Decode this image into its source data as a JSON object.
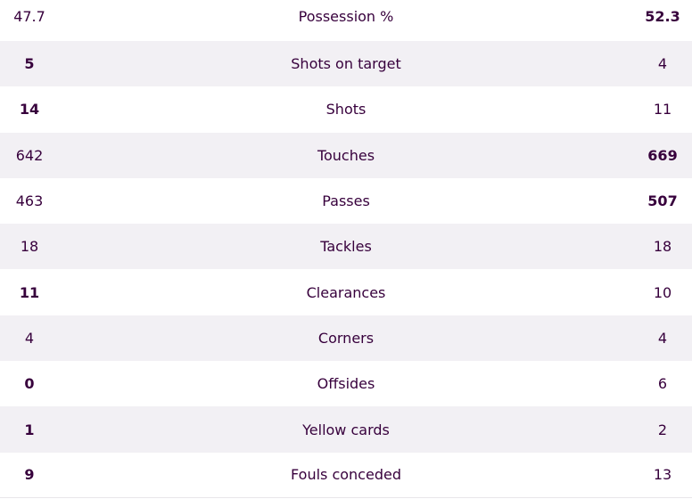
{
  "stats": [
    {
      "label": "Possession %",
      "home": "47.7",
      "away": "52.3",
      "leader": "away"
    },
    {
      "label": "Shots on target",
      "home": "5",
      "away": "4",
      "leader": "home"
    },
    {
      "label": "Shots",
      "home": "14",
      "away": "11",
      "leader": "home"
    },
    {
      "label": "Touches",
      "home": "642",
      "away": "669",
      "leader": "away"
    },
    {
      "label": "Passes",
      "home": "463",
      "away": "507",
      "leader": "away"
    },
    {
      "label": "Tackles",
      "home": "18",
      "away": "18",
      "leader": "none"
    },
    {
      "label": "Clearances",
      "home": "11",
      "away": "10",
      "leader": "home"
    },
    {
      "label": "Corners",
      "home": "4",
      "away": "4",
      "leader": "none"
    },
    {
      "label": "Offsides",
      "home": "0",
      "away": "6",
      "leader": "home"
    },
    {
      "label": "Yellow cards",
      "home": "1",
      "away": "2",
      "leader": "home"
    },
    {
      "label": "Fouls conceded",
      "home": "9",
      "away": "13",
      "leader": "home"
    }
  ],
  "colors": {
    "text": "#37003c",
    "stripe": "#f2f0f4"
  }
}
